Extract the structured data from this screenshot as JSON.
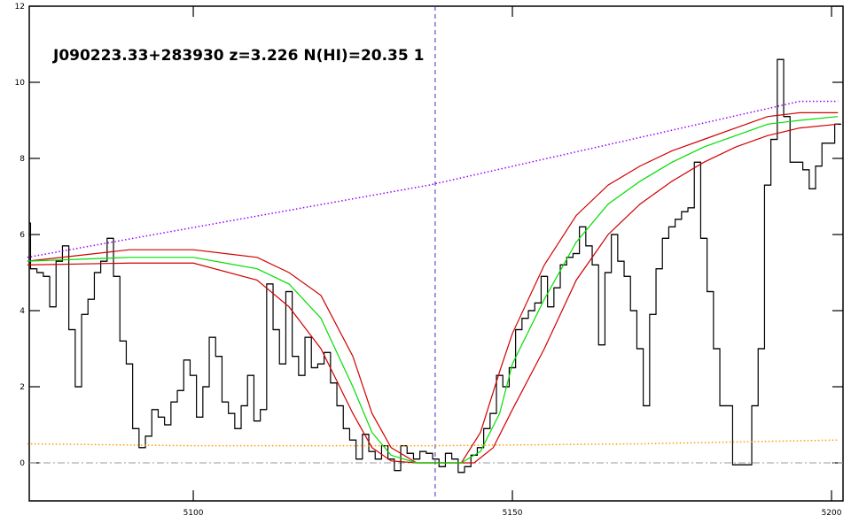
{
  "chart_data": {
    "type": "line",
    "title": "J090223.33+283930 z=3.226 N(HI)=20.35 1",
    "xlim": [
      5074.3,
      5201.8
    ],
    "ylim": [
      -1,
      12
    ],
    "xticks": [
      5100,
      5150,
      5200
    ],
    "yticks": [
      0,
      2,
      4,
      6,
      8,
      10,
      12
    ],
    "reference_y": 0,
    "reference_x": 5137.9,
    "series": [
      {
        "color": "#000000",
        "style": "step",
        "dash": "none",
        "x": [
          5074,
          5075,
          5076,
          5077,
          5078,
          5079,
          5080,
          5081,
          5082,
          5083,
          5084,
          5085,
          5086,
          5087,
          5088,
          5089,
          5090,
          5091,
          5092,
          5093,
          5094,
          5095,
          5096,
          5097,
          5098,
          5099,
          5100,
          5101,
          5102,
          5103,
          5104,
          5105,
          5106,
          5107,
          5108,
          5109,
          5110,
          5111,
          5112,
          5113,
          5114,
          5115,
          5116,
          5117,
          5118,
          5119,
          5120,
          5121,
          5122,
          5123,
          5124,
          5125,
          5126,
          5127,
          5128,
          5129,
          5130,
          5131,
          5132,
          5133,
          5134,
          5135,
          5136,
          5137,
          5138,
          5139,
          5140,
          5141,
          5142,
          5143,
          5144,
          5145,
          5146,
          5147,
          5148,
          5149,
          5150,
          5151,
          5152,
          5153,
          5154,
          5155,
          5156,
          5157,
          5158,
          5159,
          5160,
          5161,
          5162,
          5163,
          5164,
          5165,
          5166,
          5167,
          5168,
          5169,
          5170,
          5171,
          5172,
          5173,
          5174,
          5175,
          5176,
          5177,
          5178,
          5179,
          5180,
          5181,
          5182,
          5183,
          5184,
          5185,
          5186,
          5187,
          5188,
          5189,
          5190,
          5191,
          5192,
          5193,
          5194,
          5195,
          5196,
          5197,
          5198,
          5199,
          5200,
          5201
        ],
        "values": [
          6.3,
          5.1,
          5.0,
          4.9,
          4.1,
          5.3,
          5.7,
          3.5,
          2.0,
          3.9,
          4.3,
          5.0,
          5.3,
          5.9,
          4.9,
          3.2,
          2.6,
          0.9,
          0.4,
          0.7,
          1.4,
          1.2,
          1.0,
          1.6,
          1.9,
          2.7,
          2.3,
          1.2,
          2.0,
          3.3,
          2.8,
          1.6,
          1.3,
          0.9,
          1.5,
          2.3,
          1.1,
          1.4,
          4.7,
          3.5,
          2.6,
          4.5,
          2.8,
          2.3,
          3.3,
          2.5,
          2.6,
          2.9,
          2.1,
          1.5,
          0.9,
          0.6,
          0.1,
          0.75,
          0.3,
          0.1,
          0.45,
          0.1,
          -0.2,
          0.45,
          0.25,
          0.1,
          0.3,
          0.25,
          0.1,
          -0.1,
          0.25,
          0.1,
          -0.25,
          -0.1,
          0.2,
          0.4,
          0.9,
          1.3,
          2.3,
          2.0,
          2.5,
          3.5,
          3.8,
          4.0,
          4.2,
          4.9,
          4.1,
          4.6,
          5.2,
          5.4,
          5.5,
          6.2,
          5.7,
          5.2,
          3.1,
          5.0,
          6.0,
          5.3,
          4.9,
          4.0,
          3.0,
          1.5,
          3.9,
          5.1,
          5.9,
          6.2,
          6.4,
          6.6,
          6.7,
          7.9,
          5.9,
          4.5,
          3.0,
          1.5,
          1.5,
          -0.05,
          -0.05,
          -0.05,
          1.5,
          3.0,
          7.3,
          8.5,
          10.6,
          9.1,
          7.9,
          7.9,
          7.7,
          7.2,
          7.8,
          8.4,
          8.4,
          8.9
        ]
      },
      {
        "color": "#9900ff",
        "style": "line",
        "dash": "dotted",
        "x": [
          5074,
          5137,
          5195,
          5201
        ],
        "values": [
          5.4,
          7.3,
          9.5,
          9.5
        ]
      },
      {
        "color": "#ff9900",
        "style": "line",
        "dash": "dotted",
        "x": [
          5074,
          5100,
          5137,
          5170,
          5201
        ],
        "values": [
          0.5,
          0.45,
          0.45,
          0.5,
          0.6
        ]
      },
      {
        "color": "#d00000",
        "style": "line",
        "dash": "none",
        "x": [
          5074,
          5090,
          5100,
          5110,
          5115,
          5120,
          5125,
          5128,
          5131,
          5135,
          5142,
          5145,
          5148,
          5150,
          5155,
          5160,
          5165,
          5170,
          5175,
          5180,
          5185,
          5190,
          5195,
          5201
        ],
        "values": [
          5.3,
          5.6,
          5.6,
          5.4,
          5.0,
          4.4,
          2.8,
          1.3,
          0.4,
          0.0,
          0.0,
          0.8,
          2.4,
          3.4,
          5.2,
          6.5,
          7.3,
          7.8,
          8.2,
          8.5,
          8.8,
          9.1,
          9.2,
          9.2
        ]
      },
      {
        "color": "#d00000",
        "style": "line",
        "dash": "none",
        "x": [
          5074,
          5090,
          5100,
          5110,
          5115,
          5120,
          5125,
          5128,
          5131,
          5135,
          5144,
          5147,
          5150,
          5155,
          5160,
          5165,
          5170,
          5175,
          5180,
          5185,
          5190,
          5195,
          5201
        ],
        "values": [
          5.2,
          5.25,
          5.25,
          4.8,
          4.1,
          3.0,
          1.3,
          0.4,
          0.05,
          0.0,
          0.0,
          0.4,
          1.4,
          3.0,
          4.8,
          6.0,
          6.8,
          7.4,
          7.9,
          8.3,
          8.6,
          8.8,
          8.9
        ]
      },
      {
        "color": "#00dd00",
        "style": "line",
        "dash": "none",
        "x": [
          5074,
          5090,
          5100,
          5110,
          5115,
          5120,
          5125,
          5128,
          5131,
          5135,
          5142,
          5145,
          5148,
          5150,
          5155,
          5160,
          5165,
          5170,
          5175,
          5180,
          5185,
          5190,
          5195,
          5201
        ],
        "values": [
          5.3,
          5.4,
          5.4,
          5.1,
          4.7,
          3.8,
          2.0,
          0.8,
          0.2,
          0.0,
          0.0,
          0.3,
          1.3,
          2.6,
          4.3,
          5.8,
          6.8,
          7.4,
          7.9,
          8.3,
          8.6,
          8.9,
          9.0,
          9.1
        ]
      }
    ]
  }
}
